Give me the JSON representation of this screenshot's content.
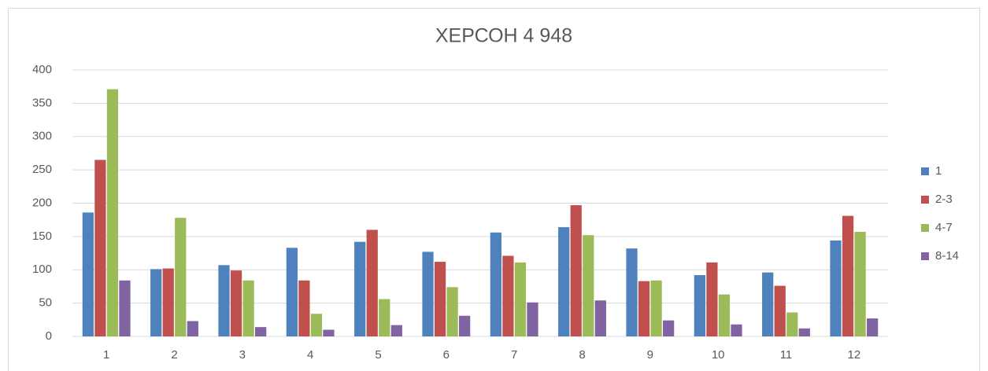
{
  "chart_data": {
    "type": "bar",
    "title": "ХЕРСОН 4 948",
    "categories": [
      "1",
      "2",
      "3",
      "4",
      "5",
      "6",
      "7",
      "8",
      "9",
      "10",
      "11",
      "12"
    ],
    "series": [
      {
        "name": "1",
        "color": "#4f81bd",
        "values": [
          186,
          101,
          107,
          133,
          142,
          127,
          156,
          164,
          132,
          92,
          96,
          144
        ]
      },
      {
        "name": "2-3",
        "color": "#c0504d",
        "values": [
          265,
          102,
          99,
          84,
          160,
          112,
          121,
          197,
          83,
          111,
          76,
          181
        ]
      },
      {
        "name": "4-7",
        "color": "#9bbb59",
        "values": [
          371,
          178,
          84,
          34,
          56,
          74,
          111,
          152,
          84,
          63,
          36,
          157
        ]
      },
      {
        "name": "8-14",
        "color": "#8064a2",
        "values": [
          84,
          23,
          14,
          10,
          17,
          31,
          51,
          54,
          24,
          18,
          12,
          27
        ]
      }
    ],
    "ylim": [
      0,
      400
    ],
    "yticks": [
      0,
      50,
      100,
      150,
      200,
      250,
      300,
      350,
      400
    ],
    "grid": true,
    "legend": "right"
  }
}
